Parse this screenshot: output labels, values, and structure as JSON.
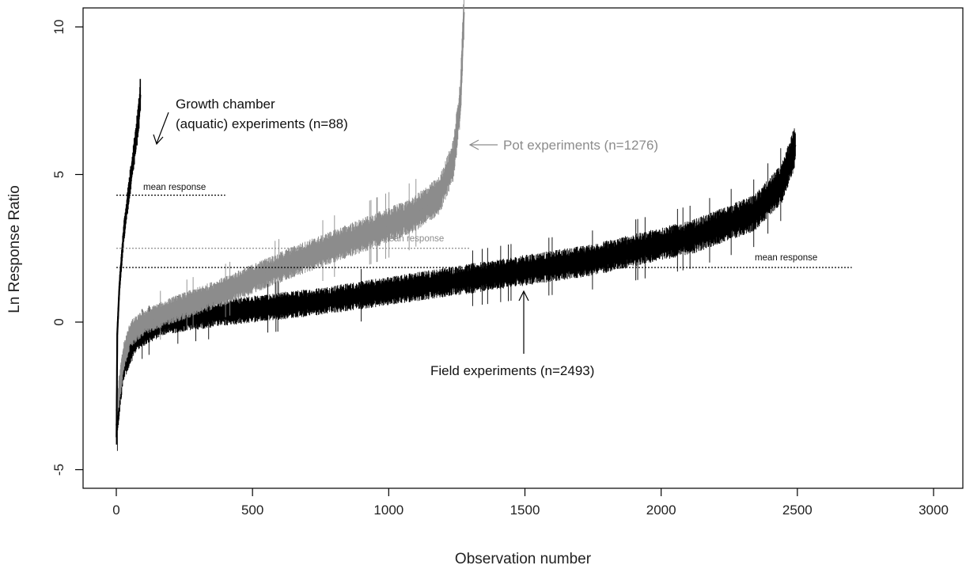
{
  "chart_data": {
    "type": "line",
    "title": "",
    "xlabel": "Observation number",
    "ylabel": "Ln Response Ratio",
    "xlim": [
      -120,
      3125
    ],
    "ylim": [
      -5.6,
      10.6
    ],
    "x_ticks": [
      0,
      500,
      1000,
      1500,
      2000,
      2500,
      3000
    ],
    "y_ticks": [
      -5,
      0,
      5,
      10
    ],
    "grid": false,
    "series": [
      {
        "name": "Growth chamber (aquatic) experiments (n=88)",
        "color": "#000000",
        "n": 88,
        "x_start": 1,
        "x_end": 88,
        "curve": [
          [
            0,
            -3.9
          ],
          [
            0.03,
            -0.4
          ],
          [
            0.12,
            1.2
          ],
          [
            0.3,
            3.0
          ],
          [
            0.5,
            4.3
          ],
          [
            0.7,
            5.5
          ],
          [
            0.88,
            6.6
          ],
          [
            0.96,
            7.2
          ],
          [
            1.0,
            7.7
          ]
        ],
        "mean": 4.3,
        "mean_x_range": [
          0,
          400
        ]
      },
      {
        "name": "Pot experiments (n=1276)",
        "color": "#8c8c8c",
        "n": 1276,
        "x_start": 1,
        "x_end": 1276,
        "curve": [
          [
            0,
            -3.0
          ],
          [
            0.02,
            -1.2
          ],
          [
            0.04,
            -0.4
          ],
          [
            0.08,
            0.0
          ],
          [
            0.16,
            0.4
          ],
          [
            0.3,
            1.0
          ],
          [
            0.5,
            2.0
          ],
          [
            0.7,
            2.9
          ],
          [
            0.85,
            3.6
          ],
          [
            0.93,
            4.3
          ],
          [
            0.97,
            5.5
          ],
          [
            0.99,
            7.5
          ],
          [
            1.0,
            10.5
          ]
        ],
        "mean": 2.5,
        "mean_x_range": [
          0,
          1300
        ]
      },
      {
        "name": "Field experiments (n=2493)",
        "color": "#000000",
        "n": 2493,
        "x_start": 1,
        "x_end": 2493,
        "curve": [
          [
            0,
            -3.5
          ],
          [
            0.01,
            -1.5
          ],
          [
            0.03,
            -0.5
          ],
          [
            0.07,
            0.0
          ],
          [
            0.15,
            0.3
          ],
          [
            0.3,
            0.7
          ],
          [
            0.5,
            1.4
          ],
          [
            0.7,
            2.1
          ],
          [
            0.85,
            2.9
          ],
          [
            0.94,
            3.7
          ],
          [
            0.98,
            4.7
          ],
          [
            1.0,
            6.0
          ]
        ],
        "mean": 1.85,
        "mean_x_range": [
          0,
          2700
        ]
      }
    ],
    "annotations": [
      {
        "id": "growth",
        "lines": [
          "Growth chamber",
          "(aquatic) experiments (n=88)"
        ],
        "arrow_to": [
          150,
          5.9
        ]
      },
      {
        "id": "pot",
        "text": "Pot experiments (n=1276)",
        "arrow_to": [
          1300,
          6.0
        ]
      },
      {
        "id": "field",
        "text": "Field experiments (n=2493)",
        "arrow_to": [
          1500,
          1.1
        ]
      },
      {
        "id": "mean-growth",
        "text": "mean response"
      },
      {
        "id": "mean-pot",
        "text": "mean response"
      },
      {
        "id": "mean-field",
        "text": "mean response"
      }
    ]
  }
}
